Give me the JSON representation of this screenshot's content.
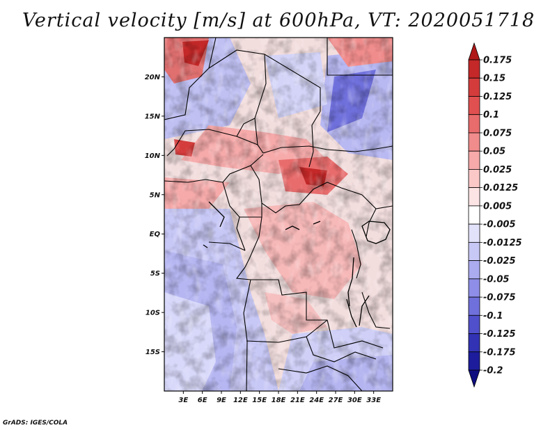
{
  "title": "Vertical velocity [m/s] at 600hPa, VT: 2020051718",
  "credit": "GrADS: IGES/COLA",
  "map": {
    "lon_range": [
      0,
      36
    ],
    "lat_range": [
      -20,
      25
    ],
    "lat_labels": [
      {
        "lat": 20,
        "label": "20N"
      },
      {
        "lat": 15,
        "label": "15N"
      },
      {
        "lat": 10,
        "label": "10N"
      },
      {
        "lat": 5,
        "label": "5N"
      },
      {
        "lat": 0,
        "label": "EQ"
      },
      {
        "lat": -5,
        "label": "5S"
      },
      {
        "lat": -10,
        "label": "10S"
      },
      {
        "lat": -15,
        "label": "15S"
      }
    ],
    "lon_labels": [
      {
        "lon": 3,
        "label": "3E"
      },
      {
        "lon": 6,
        "label": "6E"
      },
      {
        "lon": 9,
        "label": "9E"
      },
      {
        "lon": 12,
        "label": "12E"
      },
      {
        "lon": 15,
        "label": "15E"
      },
      {
        "lon": 18,
        "label": "18E"
      },
      {
        "lon": 21,
        "label": "21E"
      },
      {
        "lon": 24,
        "label": "24E"
      },
      {
        "lon": 27,
        "label": "27E"
      },
      {
        "lon": 30,
        "label": "30E"
      },
      {
        "lon": 33,
        "label": "33E"
      }
    ]
  },
  "colorbar": {
    "labels": [
      "0.175",
      "0.15",
      "0.125",
      "0.1",
      "0.075",
      "0.05",
      "0.025",
      "0.0125",
      "0.005",
      "-0.005",
      "-0.0125",
      "-0.025",
      "-0.05",
      "-0.075",
      "-0.1",
      "-0.125",
      "-0.175",
      "-0.2"
    ],
    "colors": [
      "#b01818",
      "#c42828",
      "#d43c3c",
      "#e05050",
      "#e86c6c",
      "#f08c8c",
      "#f6aaaa",
      "#fbc8c8",
      "#fde4e4",
      "#ffffff",
      "#e2e2fb",
      "#c8c8f6",
      "#ababf0",
      "#8e8ee8",
      "#7070dc",
      "#5050cc",
      "#3232b4",
      "#1c1c9c",
      "#0e0e80"
    ]
  }
}
